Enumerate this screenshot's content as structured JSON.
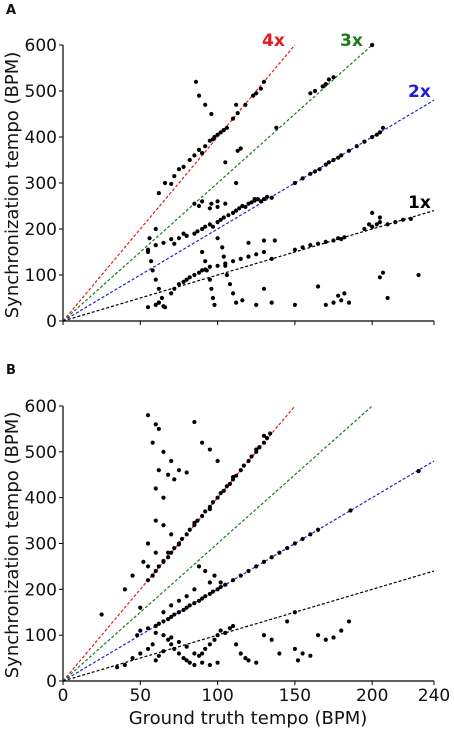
{
  "chart_data": [
    {
      "panel": "A",
      "type": "scatter",
      "ylabel": "Synchronization tempo (BPM)",
      "xlabel": "",
      "xlim": [
        0,
        240
      ],
      "ylim": [
        0,
        600
      ],
      "yticks": [
        0,
        100,
        200,
        300,
        400,
        500,
        600
      ],
      "xticks": [],
      "grid": false,
      "reference_lines": [
        {
          "label": "4x",
          "slope": 4,
          "color": "#e41a1c"
        },
        {
          "label": "3x",
          "slope": 3,
          "color": "#1a7a1a"
        },
        {
          "label": "2x",
          "slope": 2,
          "color": "#1f1fd6"
        },
        {
          "label": "1x",
          "slope": 1,
          "color": "#000000"
        }
      ],
      "points": [
        [
          62,
          278
        ],
        [
          66,
          300
        ],
        [
          70,
          298
        ],
        [
          72,
          315
        ],
        [
          75,
          330
        ],
        [
          78,
          335
        ],
        [
          82,
          350
        ],
        [
          85,
          360
        ],
        [
          88,
          372
        ],
        [
          90,
          365
        ],
        [
          92,
          380
        ],
        [
          95,
          392
        ],
        [
          97,
          395
        ],
        [
          98,
          400
        ],
        [
          100,
          405
        ],
        [
          102,
          410
        ],
        [
          104,
          415
        ],
        [
          106,
          420
        ],
        [
          110,
          440
        ],
        [
          113,
          452
        ],
        [
          118,
          470
        ],
        [
          123,
          490
        ],
        [
          125,
          495
        ],
        [
          128,
          505
        ],
        [
          130,
          520
        ],
        [
          86,
          520
        ],
        [
          88,
          490
        ],
        [
          92,
          470
        ],
        [
          96,
          450
        ],
        [
          105,
          345
        ],
        [
          112,
          470
        ],
        [
          85,
          255
        ],
        [
          88,
          250
        ],
        [
          90,
          260
        ],
        [
          96,
          255
        ],
        [
          112,
          300
        ],
        [
          113,
          370
        ],
        [
          115,
          375
        ],
        [
          124,
          265
        ],
        [
          138,
          420
        ],
        [
          160,
          495
        ],
        [
          163,
          500
        ],
        [
          168,
          510
        ],
        [
          170,
          515
        ],
        [
          172,
          525
        ],
        [
          175,
          530
        ],
        [
          200,
          600
        ],
        [
          100,
          260
        ],
        [
          55,
          155
        ],
        [
          60,
          165
        ],
        [
          65,
          170
        ],
        [
          70,
          178
        ],
        [
          72,
          168
        ],
        [
          75,
          180
        ],
        [
          78,
          190
        ],
        [
          80,
          185
        ],
        [
          85,
          190
        ],
        [
          87,
          195
        ],
        [
          90,
          200
        ],
        [
          92,
          205
        ],
        [
          95,
          210
        ],
        [
          97,
          205
        ],
        [
          100,
          215
        ],
        [
          102,
          220
        ],
        [
          104,
          225
        ],
        [
          107,
          230
        ],
        [
          110,
          235
        ],
        [
          112,
          240
        ],
        [
          114,
          245
        ],
        [
          116,
          250
        ],
        [
          118,
          248
        ],
        [
          120,
          255
        ],
        [
          122,
          258
        ],
        [
          124,
          262
        ],
        [
          126,
          265
        ],
        [
          128,
          260
        ],
        [
          130,
          265
        ],
        [
          132,
          270
        ],
        [
          135,
          268
        ],
        [
          150,
          300
        ],
        [
          155,
          310
        ],
        [
          160,
          320
        ],
        [
          163,
          325
        ],
        [
          166,
          330
        ],
        [
          170,
          340
        ],
        [
          172,
          345
        ],
        [
          175,
          350
        ],
        [
          178,
          355
        ],
        [
          180,
          360
        ],
        [
          185,
          370
        ],
        [
          190,
          380
        ],
        [
          195,
          390
        ],
        [
          200,
          400
        ],
        [
          203,
          405
        ],
        [
          205,
          410
        ],
        [
          207,
          420
        ],
        [
          95,
          245
        ],
        [
          100,
          248
        ],
        [
          105,
          255
        ],
        [
          55,
          30
        ],
        [
          60,
          35
        ],
        [
          62,
          40
        ],
        [
          65,
          32
        ],
        [
          70,
          60
        ],
        [
          72,
          70
        ],
        [
          75,
          80
        ],
        [
          78,
          85
        ],
        [
          80,
          90
        ],
        [
          82,
          95
        ],
        [
          85,
          100
        ],
        [
          88,
          105
        ],
        [
          90,
          110
        ],
        [
          92,
          112
        ],
        [
          95,
          118
        ],
        [
          100,
          120
        ],
        [
          105,
          125
        ],
        [
          110,
          130
        ],
        [
          115,
          135
        ],
        [
          120,
          140
        ],
        [
          125,
          145
        ],
        [
          130,
          150
        ],
        [
          135,
          135
        ],
        [
          150,
          155
        ],
        [
          155,
          160
        ],
        [
          160,
          165
        ],
        [
          165,
          168
        ],
        [
          170,
          172
        ],
        [
          175,
          175
        ],
        [
          178,
          180
        ],
        [
          180,
          178
        ],
        [
          182,
          182
        ],
        [
          195,
          200
        ],
        [
          198,
          210
        ],
        [
          200,
          205
        ],
        [
          203,
          210
        ],
        [
          205,
          215
        ],
        [
          210,
          210
        ],
        [
          215,
          215
        ],
        [
          220,
          220
        ],
        [
          225,
          222
        ],
        [
          200,
          235
        ],
        [
          205,
          225
        ],
        [
          120,
          170
        ],
        [
          130,
          175
        ],
        [
          55,
          150
        ],
        [
          57,
          130
        ],
        [
          58,
          110
        ],
        [
          60,
          90
        ],
        [
          62,
          70
        ],
        [
          64,
          50
        ],
        [
          66,
          30
        ],
        [
          56,
          180
        ],
        [
          60,
          200
        ],
        [
          62,
          40
        ],
        [
          90,
          150
        ],
        [
          92,
          130
        ],
        [
          93,
          110
        ],
        [
          95,
          90
        ],
        [
          96,
          70
        ],
        [
          97,
          50
        ],
        [
          98,
          35
        ],
        [
          100,
          180
        ],
        [
          103,
          160
        ],
        [
          104,
          140
        ],
        [
          105,
          120
        ],
        [
          106,
          100
        ],
        [
          108,
          80
        ],
        [
          110,
          60
        ],
        [
          112,
          40
        ],
        [
          116,
          45
        ],
        [
          125,
          35
        ],
        [
          130,
          70
        ],
        [
          135,
          40
        ],
        [
          150,
          35
        ],
        [
          165,
          75
        ],
        [
          170,
          35
        ],
        [
          175,
          40
        ],
        [
          178,
          55
        ],
        [
          180,
          45
        ],
        [
          182,
          60
        ],
        [
          185,
          40
        ],
        [
          205,
          95
        ],
        [
          207,
          105
        ],
        [
          210,
          50
        ],
        [
          230,
          100
        ],
        [
          137,
          175
        ]
      ]
    },
    {
      "panel": "B",
      "type": "scatter",
      "ylabel": "Synchronization tempo (BPM)",
      "xlabel": "Ground truth tempo (BPM)",
      "xlim": [
        0,
        240
      ],
      "ylim": [
        0,
        600
      ],
      "yticks": [
        0,
        100,
        200,
        300,
        400,
        500,
        600
      ],
      "xticks": [
        0,
        50,
        100,
        150,
        200,
        240
      ],
      "grid": false,
      "reference_lines": [
        {
          "label": "",
          "slope": 4,
          "color": "#e41a1c"
        },
        {
          "label": "",
          "slope": 3,
          "color": "#1a7a1a"
        },
        {
          "label": "",
          "slope": 2,
          "color": "#1f1fd6"
        },
        {
          "label": "",
          "slope": 1,
          "color": "#000000"
        }
      ],
      "points": [
        [
          55,
          220
        ],
        [
          58,
          230
        ],
        [
          60,
          240
        ],
        [
          62,
          250
        ],
        [
          65,
          260
        ],
        [
          68,
          270
        ],
        [
          70,
          280
        ],
        [
          72,
          290
        ],
        [
          75,
          300
        ],
        [
          77,
          310
        ],
        [
          80,
          320
        ],
        [
          82,
          330
        ],
        [
          85,
          340
        ],
        [
          87,
          350
        ],
        [
          90,
          360
        ],
        [
          92,
          370
        ],
        [
          95,
          380
        ],
        [
          97,
          390
        ],
        [
          100,
          400
        ],
        [
          102,
          410
        ],
        [
          104,
          415
        ],
        [
          106,
          425
        ],
        [
          108,
          430
        ],
        [
          110,
          440
        ],
        [
          112,
          448
        ],
        [
          115,
          460
        ],
        [
          117,
          470
        ],
        [
          120,
          480
        ],
        [
          122,
          490
        ],
        [
          125,
          500
        ],
        [
          127,
          510
        ],
        [
          130,
          520
        ],
        [
          132,
          530
        ],
        [
          134,
          540
        ],
        [
          130,
          535
        ],
        [
          125,
          505
        ],
        [
          110,
          445
        ],
        [
          95,
          375
        ],
        [
          85,
          345
        ],
        [
          75,
          298
        ],
        [
          65,
          262
        ],
        [
          48,
          100
        ],
        [
          50,
          110
        ],
        [
          55,
          115
        ],
        [
          60,
          120
        ],
        [
          62,
          125
        ],
        [
          65,
          130
        ],
        [
          68,
          135
        ],
        [
          70,
          140
        ],
        [
          72,
          145
        ],
        [
          75,
          150
        ],
        [
          78,
          155
        ],
        [
          80,
          160
        ],
        [
          82,
          165
        ],
        [
          85,
          170
        ],
        [
          88,
          175
        ],
        [
          90,
          180
        ],
        [
          92,
          185
        ],
        [
          95,
          190
        ],
        [
          97,
          195
        ],
        [
          100,
          200
        ],
        [
          102,
          205
        ],
        [
          105,
          210
        ],
        [
          110,
          220
        ],
        [
          115,
          230
        ],
        [
          120,
          240
        ],
        [
          125,
          250
        ],
        [
          130,
          260
        ],
        [
          135,
          270
        ],
        [
          140,
          280
        ],
        [
          145,
          290
        ],
        [
          150,
          300
        ],
        [
          155,
          310
        ],
        [
          160,
          320
        ],
        [
          165,
          330
        ],
        [
          186,
          372
        ],
        [
          230,
          458
        ],
        [
          55,
          580
        ],
        [
          60,
          560
        ],
        [
          62,
          550
        ],
        [
          58,
          520
        ],
        [
          65,
          500
        ],
        [
          70,
          480
        ],
        [
          62,
          460
        ],
        [
          68,
          450
        ],
        [
          72,
          440
        ],
        [
          60,
          420
        ],
        [
          65,
          400
        ],
        [
          75,
          460
        ],
        [
          80,
          455
        ],
        [
          85,
          565
        ],
        [
          90,
          520
        ],
        [
          95,
          505
        ],
        [
          100,
          480
        ],
        [
          60,
          350
        ],
        [
          65,
          340
        ],
        [
          70,
          320
        ],
        [
          55,
          300
        ],
        [
          68,
          280
        ],
        [
          88,
          250
        ],
        [
          92,
          240
        ],
        [
          98,
          230
        ],
        [
          102,
          215
        ],
        [
          95,
          215
        ],
        [
          85,
          200
        ],
        [
          80,
          185
        ],
        [
          75,
          175
        ],
        [
          70,
          165
        ],
        [
          65,
          150
        ],
        [
          50,
          160
        ],
        [
          40,
          200
        ],
        [
          45,
          230
        ],
        [
          52,
          260
        ],
        [
          60,
          280
        ],
        [
          55,
          250
        ],
        [
          25,
          145
        ],
        [
          40,
          35
        ],
        [
          45,
          50
        ],
        [
          50,
          60
        ],
        [
          55,
          70
        ],
        [
          58,
          80
        ],
        [
          60,
          45
        ],
        [
          62,
          55
        ],
        [
          65,
          65
        ],
        [
          68,
          90
        ],
        [
          70,
          80
        ],
        [
          72,
          70
        ],
        [
          75,
          60
        ],
        [
          78,
          50
        ],
        [
          80,
          45
        ],
        [
          82,
          40
        ],
        [
          85,
          35
        ],
        [
          88,
          55
        ],
        [
          90,
          60
        ],
        [
          92,
          70
        ],
        [
          95,
          80
        ],
        [
          98,
          90
        ],
        [
          100,
          100
        ],
        [
          102,
          110
        ],
        [
          105,
          105
        ],
        [
          108,
          115
        ],
        [
          110,
          120
        ],
        [
          112,
          80
        ],
        [
          115,
          60
        ],
        [
          118,
          50
        ],
        [
          120,
          45
        ],
        [
          125,
          40
        ],
        [
          130,
          100
        ],
        [
          135,
          90
        ],
        [
          140,
          60
        ],
        [
          145,
          130
        ],
        [
          150,
          70
        ],
        [
          152,
          45
        ],
        [
          155,
          60
        ],
        [
          160,
          55
        ],
        [
          165,
          100
        ],
        [
          170,
          90
        ],
        [
          175,
          95
        ],
        [
          180,
          110
        ],
        [
          185,
          130
        ],
        [
          150,
          150
        ],
        [
          100,
          40
        ],
        [
          95,
          35
        ],
        [
          90,
          40
        ],
        [
          85,
          60
        ],
        [
          80,
          75
        ],
        [
          75,
          85
        ],
        [
          70,
          95
        ],
        [
          65,
          100
        ],
        [
          60,
          105
        ],
        [
          35,
          30
        ]
      ]
    }
  ]
}
